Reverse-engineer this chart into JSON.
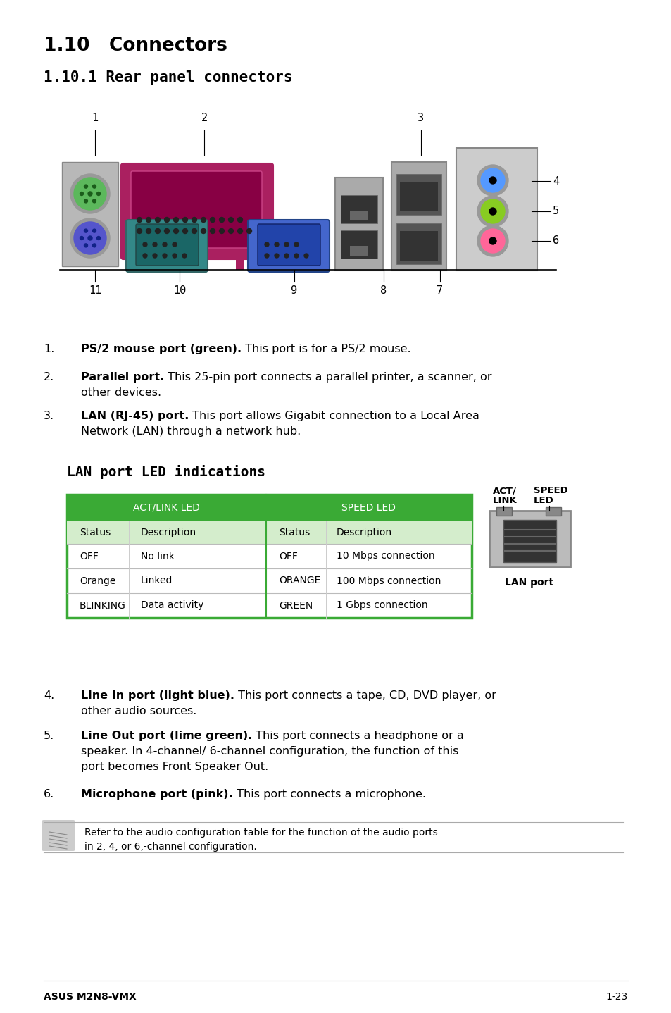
{
  "title_main": "1.10   Connectors",
  "title_sub": "1.10.1 Rear panel connectors",
  "bg_color": "#ffffff",
  "items_1_3": [
    {
      "num": "1.",
      "bold": "PS/2 mouse port (green).",
      "line1": " This port is for a PS/2 mouse.",
      "line2": ""
    },
    {
      "num": "2.",
      "bold": "Parallel port.",
      "line1": " This 25-pin port connects a parallel printer, a scanner, or",
      "line2": "other devices."
    },
    {
      "num": "3.",
      "bold": "LAN (RJ-45) port.",
      "line1": " This port allows Gigabit connection to a Local Area",
      "line2": "Network (LAN) through a network hub."
    }
  ],
  "items_4_6": [
    {
      "num": "4.",
      "bold": "Line In port (light blue).",
      "line1": " This port connects a tape, CD, DVD player, or",
      "line2": "other audio sources."
    },
    {
      "num": "5.",
      "bold": "Line Out port (lime green).",
      "line1": " This port connects a headphone or a",
      "line2": "speaker. In 4-channel/ 6-channel configuration, the function of this",
      "line3": "port becomes Front Speaker Out."
    },
    {
      "num": "6.",
      "bold": "Microphone port (pink).",
      "line1": " This port connects a microphone.",
      "line2": ""
    }
  ],
  "lan_title": "LAN port LED indications",
  "table_header_color": "#3aaa35",
  "table_subheader_bg": "#d4edcc",
  "table_border_color": "#3aaa35",
  "col1_header": "ACT/LINK LED",
  "col2_header": "SPEED LED",
  "subheaders": [
    "Status",
    "Description",
    "Status",
    "Description"
  ],
  "rows": [
    [
      "OFF",
      "No link",
      "OFF",
      "10 Mbps connection"
    ],
    [
      "Orange",
      "Linked",
      "ORANGE",
      "100 Mbps connection"
    ],
    [
      "BLINKING",
      "Data activity",
      "GREEN",
      "1 Gbps connection"
    ]
  ],
  "note_line1": "Refer to the audio configuration table for the function of the audio ports",
  "note_line2": "in 2, 4, or 6,-channel configuration.",
  "footer_left": "ASUS M2N8-VMX",
  "footer_right": "1-23"
}
